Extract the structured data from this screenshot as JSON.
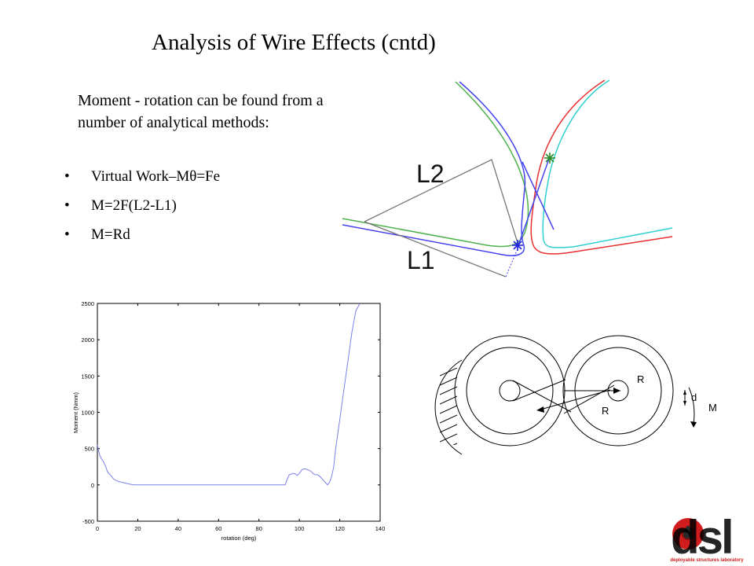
{
  "slide": {
    "title": "Analysis of Wire Effects (cntd)",
    "intro": "Moment - rotation can be found from a number of analytical methods:",
    "bullets": [
      {
        "prefix": "Virtual Work–M",
        "symbol": "θ",
        "suffix": "=Fe"
      },
      {
        "text": "M=2F(L2-L1)"
      },
      {
        "text": "M=Rd"
      }
    ]
  },
  "geometry_figure": {
    "labels": [
      "L2",
      "L1"
    ]
  },
  "chart_data": {
    "type": "line",
    "title": "",
    "xlabel": "rotation (deg)",
    "ylabel": "Moment (Nmm)",
    "xlim": [
      0,
      140
    ],
    "ylim": [
      -500,
      2500
    ],
    "xticks": [
      0,
      20,
      40,
      60,
      80,
      100,
      120,
      140
    ],
    "yticks": [
      -500,
      0,
      500,
      1000,
      1500,
      2000,
      2500
    ],
    "line_color": "#7b80e8",
    "series": [
      {
        "name": "",
        "x": [
          0,
          1,
          2,
          3,
          4,
          5,
          6,
          7,
          8,
          10,
          13,
          16,
          18,
          20,
          40,
          60,
          80,
          93,
          94,
          95,
          97,
          98,
          99,
          100,
          101,
          102,
          103,
          104,
          105,
          106,
          107,
          108,
          109,
          110,
          111,
          112,
          113,
          114,
          115,
          116,
          117,
          118,
          120,
          122,
          124,
          126,
          128,
          130
        ],
        "y": [
          550,
          420,
          360,
          320,
          260,
          180,
          150,
          120,
          80,
          50,
          30,
          10,
          0,
          0,
          0,
          0,
          0,
          0,
          80,
          140,
          160,
          150,
          130,
          160,
          200,
          220,
          220,
          210,
          200,
          180,
          150,
          140,
          140,
          120,
          90,
          60,
          30,
          0,
          40,
          120,
          250,
          500,
          900,
          1300,
          1700,
          2100,
          2400,
          2500
        ]
      }
    ]
  },
  "mechanism_figure": {
    "labels": [
      "R",
      "R",
      "d",
      "M"
    ]
  },
  "logo": {
    "text": "dsl",
    "tagline": "deployable structures laboratory",
    "accent": "#d01c1c"
  }
}
